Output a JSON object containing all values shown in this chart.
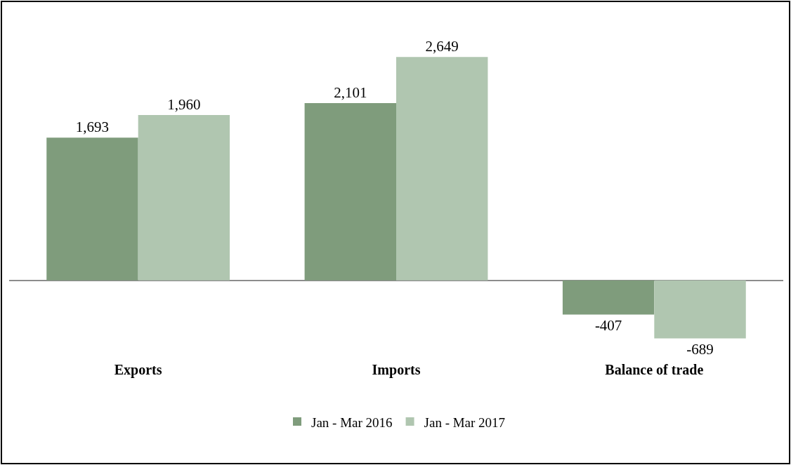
{
  "chart_data": {
    "type": "bar",
    "relative": false,
    "categories": [
      "Exports",
      "Imports",
      "Balance of trade"
    ],
    "series": [
      {
        "name": "Jan - Mar 2016",
        "color": "#7f9c7c",
        "values": [
          1693,
          2101,
          -407
        ],
        "value_labels": [
          "1,693",
          "2,101",
          "-407"
        ]
      },
      {
        "name": "Jan - Mar 2017",
        "color": "#b0c6b0",
        "values": [
          1960,
          2649,
          -689
        ],
        "value_labels": [
          "1,960",
          "2,649",
          "-689"
        ]
      }
    ],
    "grid": false,
    "legend": "bottom"
  }
}
